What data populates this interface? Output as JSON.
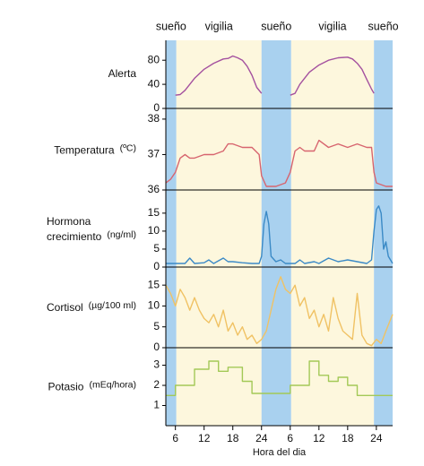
{
  "chart_data": [
    {
      "type": "line",
      "label": [
        "Alerta"
      ],
      "color": "#a4519f",
      "xlim": [
        4,
        51.4
      ],
      "ylim": [
        0,
        113
      ],
      "yticks": [
        0,
        40,
        80
      ],
      "phases": [
        {
          "label": "sueño",
          "start": 4,
          "end": 6.2
        },
        {
          "label": "vigilia",
          "start": 6.2,
          "end": 24
        },
        {
          "label": "sueño",
          "start": 24,
          "end": 30.2
        },
        {
          "label": "vigilia",
          "start": 30.2,
          "end": 47.5
        },
        {
          "label": "sueño",
          "start": 47.5,
          "end": 51.4
        }
      ],
      "x": [
        6,
        7,
        8,
        10,
        12,
        14,
        16,
        17,
        18,
        19,
        20,
        21,
        22,
        23,
        24,
        27,
        30,
        31,
        32,
        34,
        36,
        38,
        40,
        42,
        43,
        44,
        45,
        46,
        47,
        47.5
      ],
      "values": [
        22,
        23,
        30,
        50,
        65,
        75,
        82,
        83,
        87,
        84,
        80,
        70,
        55,
        35,
        25,
        null,
        22,
        25,
        40,
        60,
        72,
        80,
        84,
        85,
        82,
        75,
        65,
        48,
        32,
        25
      ]
    },
    {
      "type": "line",
      "label": [
        "Temperatura"
      ],
      "unit": "(ºC)",
      "color": "#d7656f",
      "xlim": [
        4,
        51.4
      ],
      "ylim": [
        36,
        38.2
      ],
      "yticks": [
        36,
        37,
        38
      ],
      "x": [
        4,
        5,
        6,
        7,
        8,
        9,
        10,
        12,
        14,
        16,
        17,
        18,
        20,
        22,
        23.5,
        24,
        25,
        27,
        29,
        30,
        31,
        32,
        33,
        35,
        36,
        38,
        40,
        42,
        44,
        46,
        47,
        47.5,
        48,
        50,
        51.4
      ],
      "values": [
        36.2,
        36.3,
        36.5,
        36.9,
        37,
        36.9,
        36.9,
        37,
        37,
        37.1,
        37.3,
        37.3,
        37.2,
        37.2,
        37,
        36.4,
        36.1,
        36.1,
        36.2,
        36.5,
        37.1,
        37.2,
        37.1,
        37.1,
        37.4,
        37.2,
        37.3,
        37.2,
        37.3,
        37.2,
        37.2,
        36.5,
        36.2,
        36.1,
        36.1
      ]
    },
    {
      "type": "line",
      "label": [
        "Hormona",
        "crecimiento"
      ],
      "unit": "(ng/ml)",
      "color": "#3b8ac6",
      "xlim": [
        4,
        51.4
      ],
      "ylim": [
        0,
        20.7
      ],
      "yticks": [
        0,
        5,
        10,
        15
      ],
      "x": [
        4,
        8,
        9,
        10,
        12,
        13,
        14,
        16,
        17,
        18,
        20,
        22,
        23.5,
        24,
        24.5,
        25,
        25.5,
        26,
        27,
        28,
        29,
        31,
        32,
        33,
        35,
        36,
        38,
        40,
        42,
        44,
        46,
        47,
        47.5,
        48,
        48.5,
        49,
        49.5,
        50,
        50.5,
        51.4
      ],
      "values": [
        1,
        1,
        2.5,
        1,
        1.2,
        2,
        1,
        2.5,
        1.5,
        1.5,
        1.2,
        1,
        1,
        3,
        12,
        15.5,
        12,
        3,
        1.5,
        2,
        1,
        1,
        2,
        1,
        1.5,
        1,
        2.5,
        1.5,
        2,
        1.5,
        1,
        2,
        10,
        16,
        17,
        15,
        5,
        7,
        3,
        1
      ]
    },
    {
      "type": "line",
      "label": [
        "Cortisol"
      ],
      "unit": "(µg/100 ml)",
      "color": "#f0c264",
      "xlim": [
        4,
        51.4
      ],
      "ylim": [
        0,
        18.9
      ],
      "yticks": [
        0,
        5,
        10,
        15
      ],
      "x": [
        4,
        5,
        6,
        7,
        8,
        9,
        10,
        11,
        12,
        13,
        14,
        15,
        16,
        17,
        18,
        19,
        20,
        21,
        22,
        23,
        24,
        25,
        26,
        27,
        28,
        29,
        30,
        31,
        32,
        33,
        34,
        35,
        36,
        37,
        38,
        39,
        40,
        41,
        42,
        43,
        44,
        45,
        46,
        47,
        48,
        49,
        50,
        51.4
      ],
      "values": [
        15,
        13,
        10,
        14,
        12,
        9,
        12,
        9,
        7,
        6,
        8,
        5,
        9,
        4,
        6,
        3,
        5,
        2,
        3,
        1,
        2,
        4,
        9,
        14,
        17,
        14,
        13,
        15,
        10,
        12,
        7,
        9,
        5,
        8,
        4,
        12,
        7,
        4,
        3,
        2,
        13,
        3,
        1,
        0.5,
        2,
        1,
        4,
        8
      ]
    },
    {
      "type": "line",
      "label": [
        "Potasio"
      ],
      "unit": "(mEq/hora)",
      "color": "#a3c957",
      "xlim": [
        4,
        51.4
      ],
      "ylim": [
        0,
        3.78
      ],
      "yticks": [
        1,
        2,
        3
      ],
      "xlabel": "Hora del dia",
      "xticks": [
        6,
        12,
        18,
        24,
        {
          "value": 30,
          "label": "6"
        },
        {
          "value": 36,
          "label": "12"
        },
        {
          "value": 42,
          "label": "18"
        },
        {
          "value": 48,
          "label": "24"
        }
      ],
      "x": [
        4,
        6,
        6,
        10,
        10,
        13,
        13,
        15,
        15,
        17,
        17,
        20,
        20,
        22,
        22,
        30,
        30,
        34,
        34,
        36,
        36,
        38,
        38,
        40,
        40,
        42,
        42,
        44,
        44,
        51.4
      ],
      "values": [
        1.5,
        1.5,
        2,
        2,
        2.8,
        2.8,
        3.2,
        3.2,
        2.7,
        2.7,
        2.9,
        2.9,
        2.2,
        2.2,
        1.6,
        1.6,
        2,
        2,
        3.2,
        3.2,
        2.5,
        2.5,
        2.2,
        2.2,
        2.4,
        2.4,
        2,
        2,
        1.5,
        1.5
      ]
    }
  ]
}
